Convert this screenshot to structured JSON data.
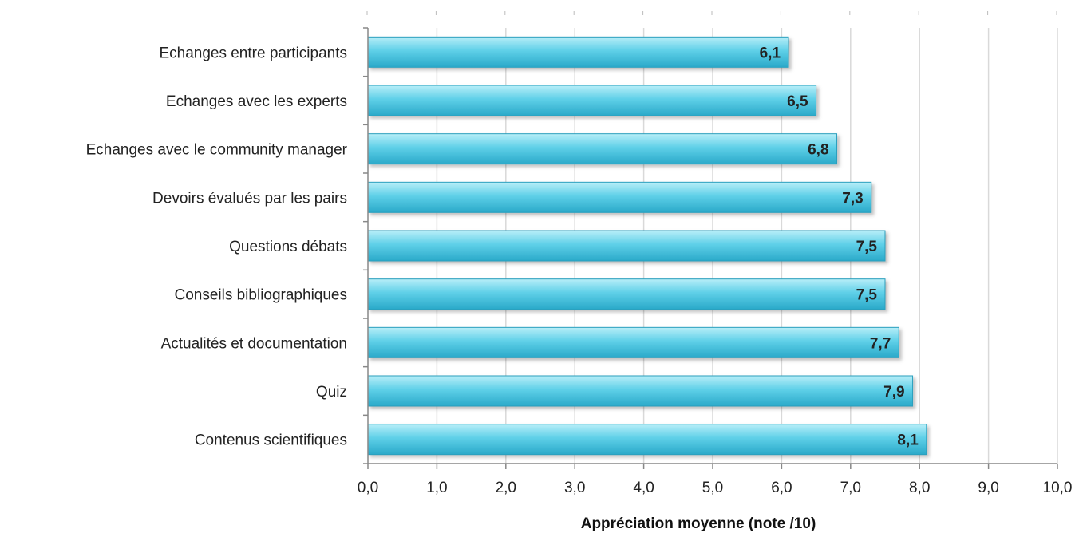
{
  "chart_data": {
    "type": "bar",
    "orientation": "horizontal",
    "categories": [
      "Echanges entre participants",
      "Echanges avec les experts",
      "Echanges avec le community manager",
      "Devoirs évalués par les pairs",
      "Questions débats",
      "Conseils bibliographiques",
      "Actualités et documentation",
      "Quiz",
      "Contenus scientifiques"
    ],
    "values": [
      6.1,
      6.5,
      6.8,
      7.3,
      7.5,
      7.5,
      7.7,
      7.9,
      8.1
    ],
    "value_labels": [
      "6,1",
      "6,5",
      "6,8",
      "7,3",
      "7,5",
      "7,5",
      "7,7",
      "7,9",
      "8,1"
    ],
    "xlabel": "Appréciation moyenne (note /10)",
    "ylabel": "",
    "xlim": [
      0,
      10
    ],
    "xticks": [
      0,
      1,
      2,
      3,
      4,
      5,
      6,
      7,
      8,
      9,
      10
    ],
    "xtick_labels": [
      "0,0",
      "1,0",
      "2,0",
      "3,0",
      "4,0",
      "5,0",
      "6,0",
      "7,0",
      "8,0",
      "9,0",
      "10,0"
    ],
    "grid": "vertical",
    "legend": "none",
    "colors": {
      "bar_top": "#b8eef8",
      "bar_mid": "#5fd0e8",
      "bar_bottom": "#2aa9c9",
      "bar_stroke": "#2a9fbd",
      "grid": "#d9d9d9",
      "axis": "#888888"
    }
  }
}
